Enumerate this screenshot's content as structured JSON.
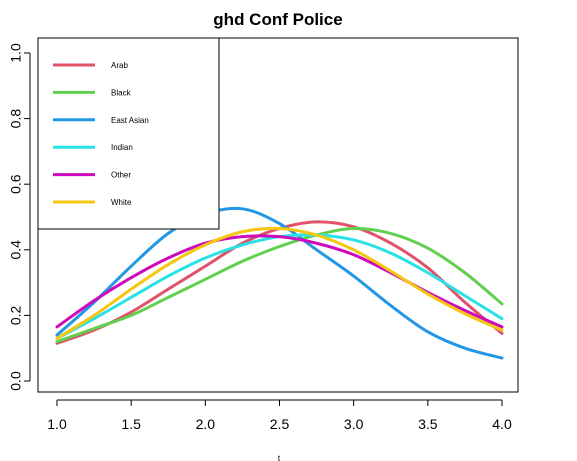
{
  "chart_data": {
    "type": "line",
    "title": "ghd Conf Police",
    "xlabel": "t",
    "ylabel": "",
    "xlim": [
      1.0,
      4.0
    ],
    "ylim": [
      0.0,
      1.0
    ],
    "x_ticks": [
      "1.0",
      "1.5",
      "2.0",
      "2.5",
      "3.0",
      "3.5",
      "4.0"
    ],
    "y_ticks": [
      "0.0",
      "0.2",
      "0.4",
      "0.6",
      "0.8",
      "1.0"
    ],
    "grid": false,
    "legend_position": "top-left",
    "x": [
      1.0,
      1.25,
      1.5,
      1.75,
      2.0,
      2.25,
      2.5,
      2.75,
      3.0,
      3.25,
      3.5,
      3.75,
      4.0
    ],
    "series": [
      {
        "name": "Arab",
        "color": "#DF536B",
        "values": [
          0.115,
          0.155,
          0.21,
          0.28,
          0.35,
          0.42,
          0.465,
          0.485,
          0.47,
          0.42,
          0.345,
          0.24,
          0.145
        ]
      },
      {
        "name": "Black",
        "color": "#61D04F",
        "values": [
          0.12,
          0.16,
          0.2,
          0.255,
          0.31,
          0.365,
          0.41,
          0.445,
          0.465,
          0.45,
          0.405,
          0.33,
          0.235
        ]
      },
      {
        "name": "East Asian",
        "color": "#2297E6",
        "values": [
          0.14,
          0.24,
          0.35,
          0.45,
          0.51,
          0.525,
          0.48,
          0.4,
          0.32,
          0.23,
          0.15,
          0.1,
          0.07
        ]
      },
      {
        "name": "Indian",
        "color": "#28E2E5",
        "values": [
          0.13,
          0.19,
          0.255,
          0.32,
          0.375,
          0.415,
          0.44,
          0.445,
          0.43,
          0.39,
          0.33,
          0.26,
          0.19
        ]
      },
      {
        "name": "Other",
        "color": "#CD0BBC",
        "values": [
          0.165,
          0.245,
          0.315,
          0.375,
          0.42,
          0.44,
          0.44,
          0.42,
          0.385,
          0.33,
          0.27,
          0.215,
          0.165
        ]
      },
      {
        "name": "White",
        "color": "#F5C710",
        "values": [
          0.13,
          0.2,
          0.28,
          0.355,
          0.415,
          0.455,
          0.465,
          0.445,
          0.4,
          0.335,
          0.265,
          0.205,
          0.155
        ]
      }
    ]
  }
}
